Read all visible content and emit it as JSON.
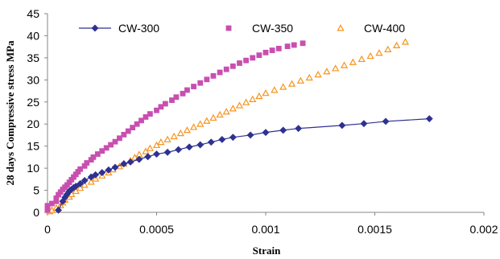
{
  "chart_data": {
    "type": "scatter",
    "title": "",
    "xlabel": "Strain",
    "ylabel": "28 days Compressive stress MPa",
    "xlim": [
      0,
      0.002
    ],
    "ylim": [
      0,
      45
    ],
    "x_ticks": [
      "0",
      "0.0005",
      "0.001",
      "0.0015",
      "0.002"
    ],
    "y_ticks": [
      "0",
      "5",
      "10",
      "15",
      "20",
      "25",
      "30",
      "35",
      "40",
      "45"
    ],
    "x_tick_values": [
      0,
      0.0005,
      0.001,
      0.0015,
      0.002
    ],
    "y_tick_values": [
      0,
      5,
      10,
      15,
      20,
      25,
      30,
      35,
      40,
      45
    ],
    "grid": false,
    "legend_position": "top",
    "series": [
      {
        "name": "CW-300",
        "marker": "diamond",
        "line": true,
        "color": "#2e3192",
        "points": [
          [
            5e-05,
            0.5
          ],
          [
            7e-05,
            2.5
          ],
          [
            8e-05,
            3.4
          ],
          [
            9e-05,
            4.1
          ],
          [
            0.0001,
            4.8
          ],
          [
            0.00011,
            5.2
          ],
          [
            0.00012,
            5.6
          ],
          [
            0.00013,
            5.9
          ],
          [
            0.00015,
            6.5
          ],
          [
            0.00017,
            7.2
          ],
          [
            0.0002,
            8.0
          ],
          [
            0.00022,
            8.5
          ],
          [
            0.00025,
            9.0
          ],
          [
            0.00028,
            9.6
          ],
          [
            0.00031,
            10.2
          ],
          [
            0.00035,
            11.0
          ],
          [
            0.00038,
            11.4
          ],
          [
            0.00042,
            12.0
          ],
          [
            0.00046,
            12.6
          ],
          [
            0.0005,
            13.2
          ],
          [
            0.00055,
            13.6
          ],
          [
            0.0006,
            14.2
          ],
          [
            0.00065,
            14.8
          ],
          [
            0.0007,
            15.3
          ],
          [
            0.00075,
            15.9
          ],
          [
            0.0008,
            16.5
          ],
          [
            0.00085,
            17.0
          ],
          [
            0.00093,
            17.5
          ],
          [
            0.001,
            18.1
          ],
          [
            0.00108,
            18.6
          ],
          [
            0.00115,
            19.0
          ],
          [
            0.00135,
            19.7
          ],
          [
            0.00145,
            20.1
          ],
          [
            0.00155,
            20.6
          ],
          [
            0.00175,
            21.2
          ]
        ]
      },
      {
        "name": "CW-350",
        "marker": "square",
        "line": false,
        "color": "#c84fb0",
        "points": [
          [
            0.0,
            0.5
          ],
          [
            0.0,
            1.0
          ],
          [
            0.0,
            1.5
          ],
          [
            2e-05,
            2.0
          ],
          [
            4e-05,
            2.5
          ],
          [
            4e-05,
            3.2
          ],
          [
            5e-05,
            4.0
          ],
          [
            6e-05,
            4.6
          ],
          [
            7e-05,
            5.2
          ],
          [
            8e-05,
            5.7
          ],
          [
            9e-05,
            6.2
          ],
          [
            0.0001,
            6.8
          ],
          [
            0.00011,
            7.4
          ],
          [
            0.00012,
            8.0
          ],
          [
            0.00013,
            8.6
          ],
          [
            0.00014,
            9.2
          ],
          [
            0.00015,
            9.8
          ],
          [
            0.00017,
            10.5
          ],
          [
            0.00018,
            11.2
          ],
          [
            0.0002,
            11.9
          ],
          [
            0.00021,
            12.5
          ],
          [
            0.00023,
            13.2
          ],
          [
            0.00025,
            13.9
          ],
          [
            0.00027,
            14.6
          ],
          [
            0.00029,
            15.3
          ],
          [
            0.00031,
            16.0
          ],
          [
            0.00033,
            16.8
          ],
          [
            0.00035,
            17.6
          ],
          [
            0.00037,
            18.4
          ],
          [
            0.00039,
            19.2
          ],
          [
            0.00041,
            20.0
          ],
          [
            0.00043,
            20.8
          ],
          [
            0.00045,
            21.6
          ],
          [
            0.00047,
            22.3
          ],
          [
            0.0005,
            23.1
          ],
          [
            0.00052,
            23.9
          ],
          [
            0.00054,
            24.6
          ],
          [
            0.00057,
            25.4
          ],
          [
            0.00059,
            26.1
          ],
          [
            0.00062,
            26.9
          ],
          [
            0.00064,
            27.7
          ],
          [
            0.00067,
            28.5
          ],
          [
            0.0007,
            29.3
          ],
          [
            0.00073,
            30.1
          ],
          [
            0.00076,
            30.9
          ],
          [
            0.00079,
            31.7
          ],
          [
            0.00082,
            32.4
          ],
          [
            0.00085,
            33.1
          ],
          [
            0.00088,
            33.8
          ],
          [
            0.00091,
            34.4
          ],
          [
            0.00094,
            35.0
          ],
          [
            0.00097,
            35.6
          ],
          [
            0.001,
            36.2
          ],
          [
            0.00103,
            36.7
          ],
          [
            0.00106,
            37.1
          ],
          [
            0.0011,
            37.6
          ],
          [
            0.00113,
            37.9
          ],
          [
            0.00117,
            38.3
          ]
        ]
      },
      {
        "name": "CW-400",
        "marker": "triangle",
        "line": false,
        "color": "#f7941d",
        "points": [
          [
            1e-05,
            0.2
          ],
          [
            2e-05,
            0.5
          ],
          [
            4e-05,
            1.0
          ],
          [
            6e-05,
            1.6
          ],
          [
            7e-05,
            2.2
          ],
          [
            8e-05,
            2.8
          ],
          [
            0.0001,
            3.5
          ],
          [
            0.00011,
            4.1
          ],
          [
            0.00013,
            4.8
          ],
          [
            0.00015,
            5.5
          ],
          [
            0.00017,
            6.2
          ],
          [
            0.0002,
            6.9
          ],
          [
            0.00022,
            7.6
          ],
          [
            0.00025,
            8.3
          ],
          [
            0.00028,
            9.0
          ],
          [
            0.0003,
            9.7
          ],
          [
            0.00033,
            10.4
          ],
          [
            0.00035,
            11.0
          ],
          [
            0.00038,
            11.7
          ],
          [
            0.0004,
            12.4
          ],
          [
            0.00042,
            13.1
          ],
          [
            0.00045,
            13.8
          ],
          [
            0.00047,
            14.5
          ],
          [
            0.0005,
            15.2
          ],
          [
            0.00052,
            15.9
          ],
          [
            0.00055,
            16.5
          ],
          [
            0.00058,
            17.2
          ],
          [
            0.00061,
            17.9
          ],
          [
            0.00064,
            18.6
          ],
          [
            0.00067,
            19.3
          ],
          [
            0.0007,
            20.0
          ],
          [
            0.00073,
            20.7
          ],
          [
            0.00076,
            21.4
          ],
          [
            0.00079,
            22.1
          ],
          [
            0.00082,
            22.8
          ],
          [
            0.00085,
            23.5
          ],
          [
            0.00088,
            24.2
          ],
          [
            0.00091,
            24.9
          ],
          [
            0.00094,
            25.6
          ],
          [
            0.00097,
            26.3
          ],
          [
            0.001,
            27.0
          ],
          [
            0.00104,
            27.7
          ],
          [
            0.00108,
            28.4
          ],
          [
            0.00112,
            29.1
          ],
          [
            0.00116,
            29.8
          ],
          [
            0.0012,
            30.5
          ],
          [
            0.00124,
            31.2
          ],
          [
            0.00128,
            31.9
          ],
          [
            0.00132,
            32.6
          ],
          [
            0.00136,
            33.3
          ],
          [
            0.0014,
            34.0
          ],
          [
            0.00144,
            34.7
          ],
          [
            0.00148,
            35.4
          ],
          [
            0.00152,
            36.1
          ],
          [
            0.00156,
            36.9
          ],
          [
            0.0016,
            37.8
          ],
          [
            0.00164,
            38.6
          ]
        ]
      }
    ]
  }
}
